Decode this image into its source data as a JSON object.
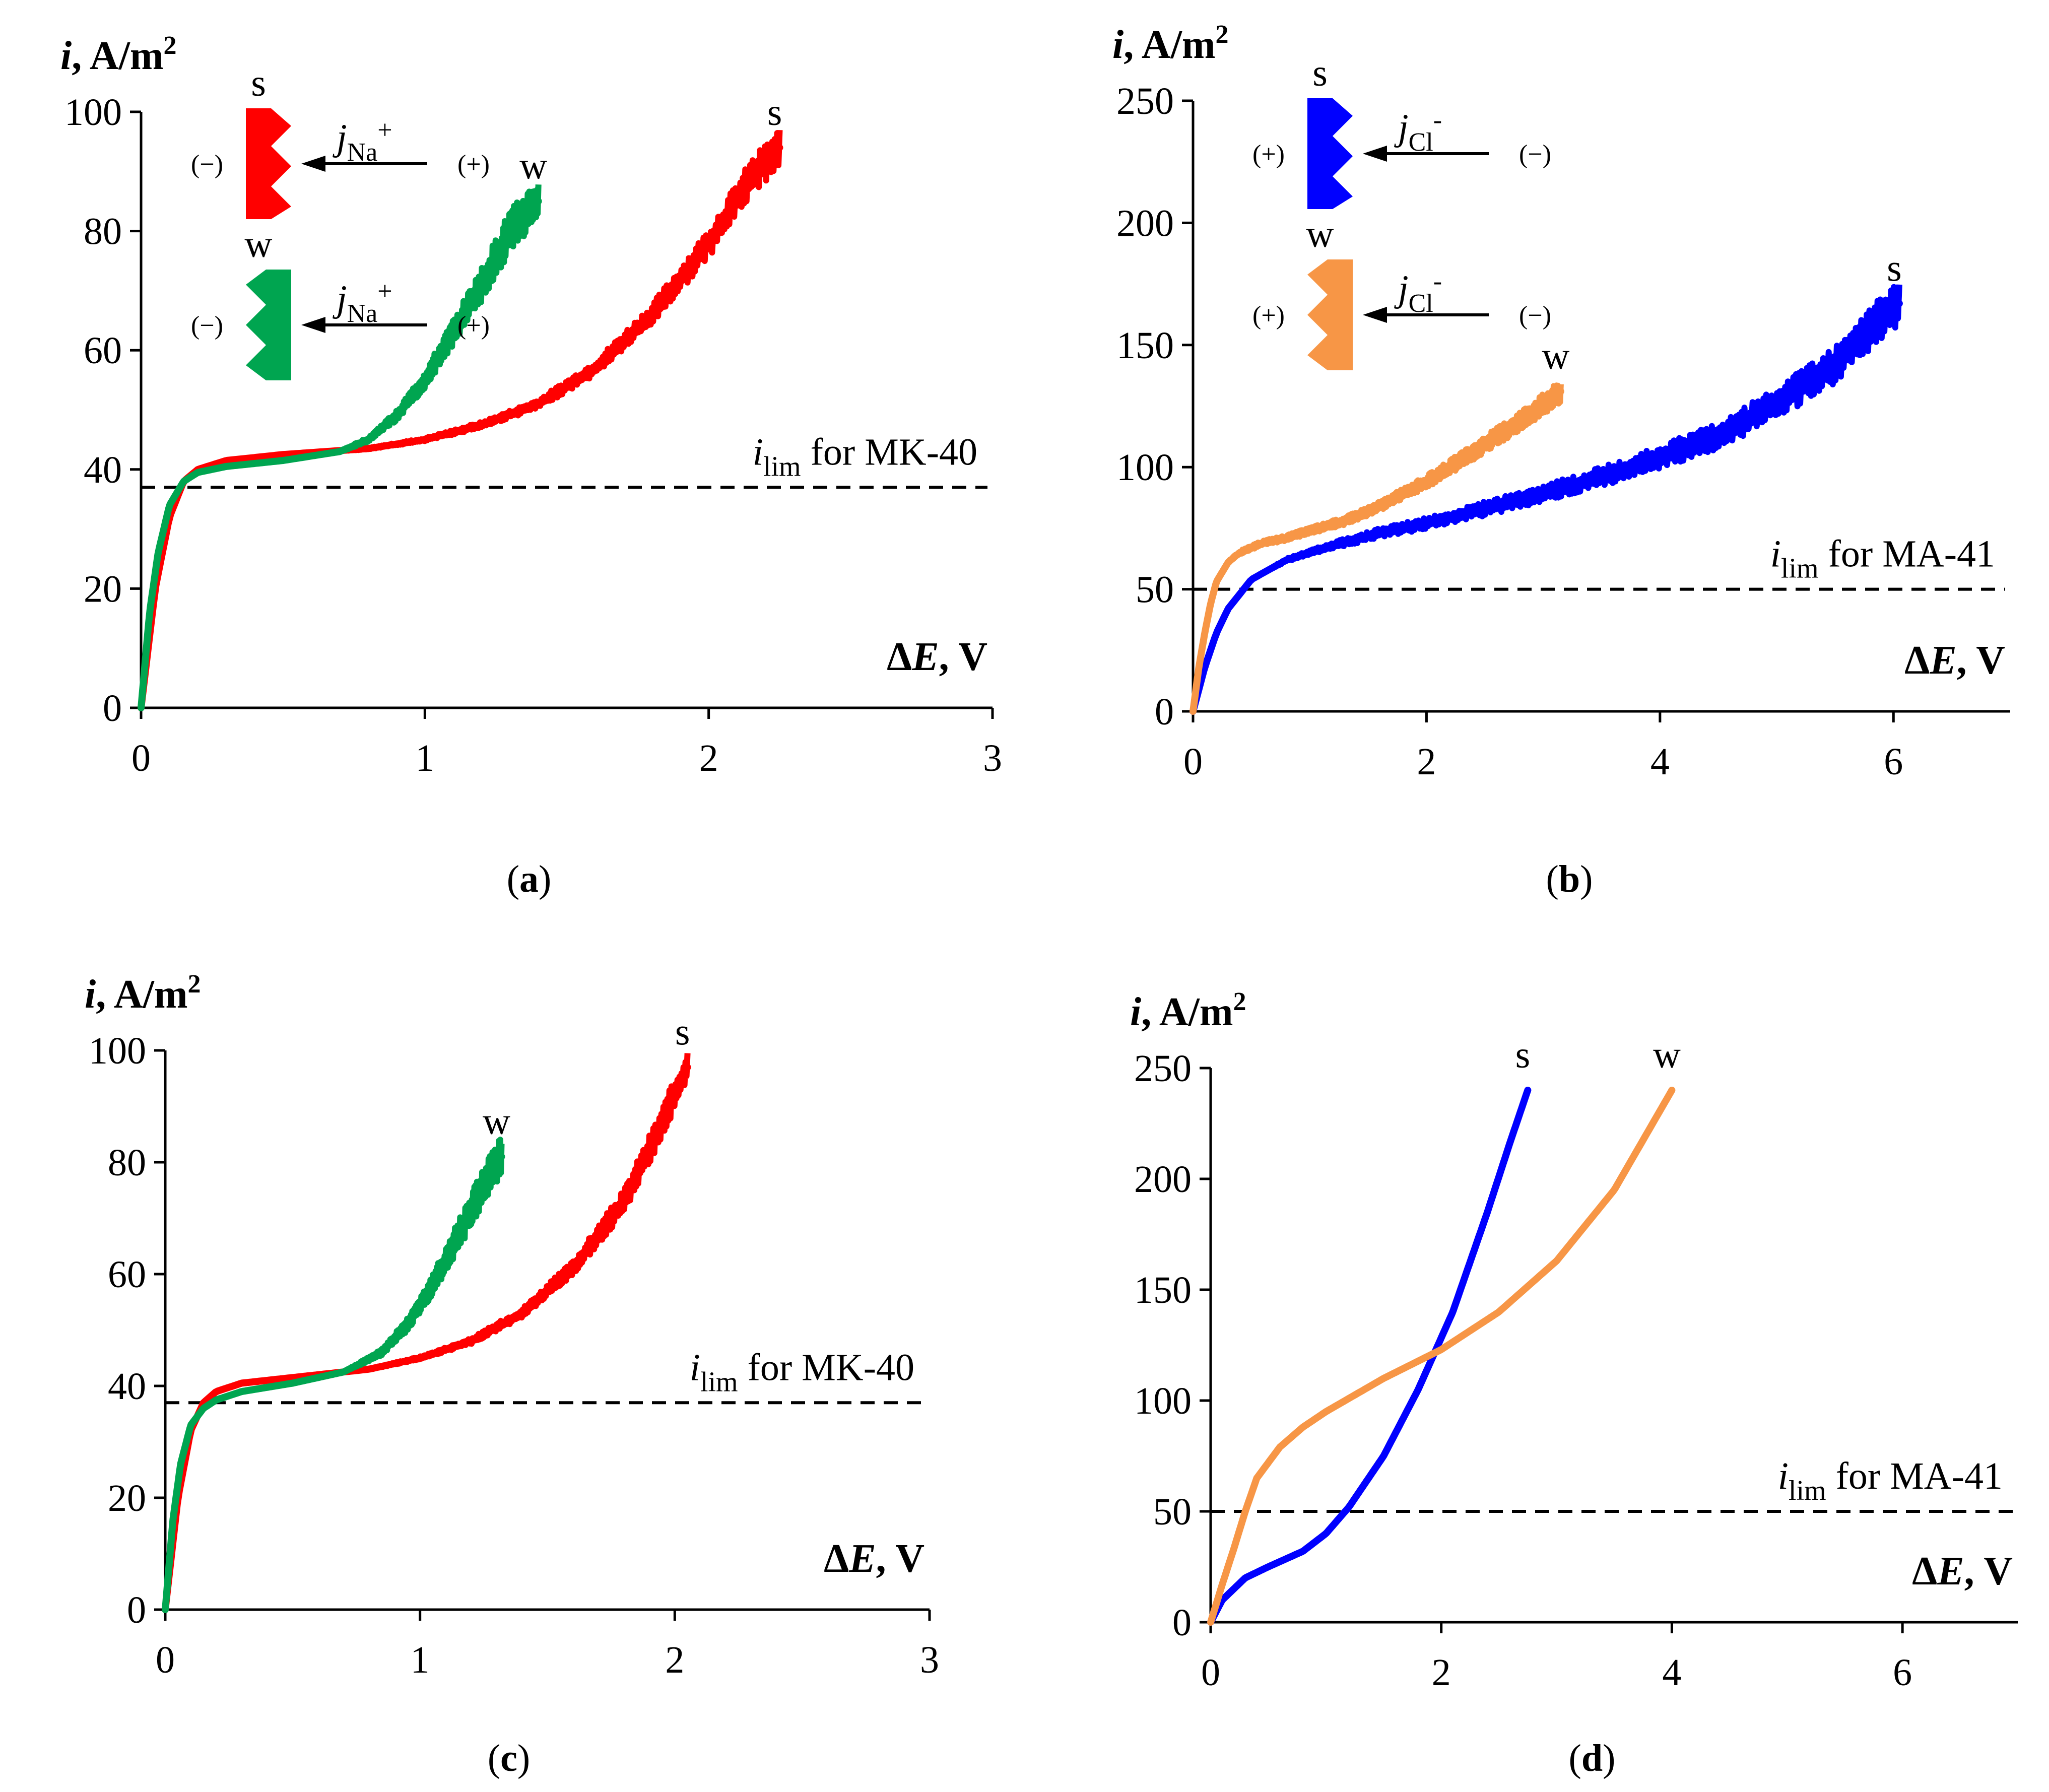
{
  "colors": {
    "red": "#ff0000",
    "green": "#00a550",
    "blue": "#0000ff",
    "orange": "#f79646",
    "axis": "#000000"
  },
  "chart_data": [
    {
      "panel": "a",
      "type": "line",
      "caption_letter": "a",
      "ylabel_i": "i",
      "ylabel_units": ", A/m",
      "ylabel_sup": "2",
      "xlabel_d": "Δ",
      "xlabel_e": "E",
      "xlabel_units": ", V",
      "xlim": [
        0,
        3
      ],
      "ylim": [
        0,
        100
      ],
      "xticks": [
        0,
        1,
        2,
        3
      ],
      "xtick_labels": [
        "0",
        "1",
        "2",
        "3"
      ],
      "yticks": [
        0,
        20,
        40,
        60,
        80,
        100
      ],
      "ytick_labels": [
        "0",
        "20",
        "40",
        "60",
        "80",
        "100"
      ],
      "ilim": 37,
      "ilim_prefix": "i",
      "ilim_sub": "lim",
      "ilim_text": " for MK-40",
      "inset": {
        "ion": "j",
        "ion_sub": "Na",
        "ion_sup": "+",
        "left_sign": "(−)",
        "right_sign": "(+)",
        "top_label": "s",
        "bottom_label": "w",
        "top_color": "red",
        "bottom_color": "green"
      },
      "series": [
        {
          "name": "s",
          "color": "red",
          "noise": 2.2,
          "x": [
            0,
            0.05,
            0.1,
            0.15,
            0.2,
            0.3,
            0.5,
            0.8,
            1.0,
            1.2,
            1.4,
            1.6,
            1.8,
            2.0,
            2.15,
            2.25
          ],
          "y": [
            0,
            20,
            32,
            38,
            40,
            41.5,
            42.5,
            43.5,
            45,
            47.5,
            51,
            57,
            66,
            78,
            89,
            94
          ]
        },
        {
          "name": "w",
          "color": "green",
          "noise": 2.6,
          "x": [
            0,
            0.03,
            0.06,
            0.1,
            0.15,
            0.2,
            0.3,
            0.5,
            0.7,
            0.8,
            0.9,
            1.0,
            1.1,
            1.2,
            1.3,
            1.4
          ],
          "y": [
            0,
            16,
            26,
            34,
            38,
            39.5,
            40.5,
            41.5,
            43,
            45,
            49,
            55,
            63,
            71,
            80,
            85
          ]
        }
      ]
    },
    {
      "panel": "b",
      "type": "line",
      "caption_letter": "b",
      "ylabel_i": "i",
      "ylabel_units": ", A/m",
      "ylabel_sup": "2",
      "xlabel_d": "Δ",
      "xlabel_e": "E",
      "xlabel_units": ", V",
      "xlim": [
        0,
        7
      ],
      "ylim": [
        0,
        250
      ],
      "xticks": [
        0,
        2,
        4,
        6
      ],
      "xtick_labels": [
        "0",
        "2",
        "4",
        "6"
      ],
      "yticks": [
        0,
        50,
        100,
        150,
        200,
        250
      ],
      "ytick_labels": [
        "0",
        "50",
        "100",
        "150",
        "200",
        "250"
      ],
      "ilim": 50,
      "ilim_prefix": "i",
      "ilim_sub": "lim",
      "ilim_text": " for MA-41",
      "inset": {
        "ion": "j",
        "ion_sub": "Cl",
        "ion_sup": "-",
        "left_sign": "(+)",
        "right_sign": "(−)",
        "top_label": "s",
        "bottom_label": "w",
        "top_color": "blue",
        "bottom_color": "orange"
      },
      "series": [
        {
          "name": "s",
          "color": "blue",
          "noise": 2.5,
          "x": [
            0,
            0.1,
            0.2,
            0.3,
            0.5,
            0.8,
            1.2,
            1.6,
            2.0,
            2.5,
            3.0,
            3.5,
            4.0,
            4.5,
            5.0,
            5.5,
            5.8,
            6.05
          ],
          "y": [
            0,
            18,
            32,
            42,
            54,
            62,
            68,
            73,
            77,
            83,
            89,
            96,
            104,
            113,
            126,
            142,
            157,
            167
          ]
        },
        {
          "name": "w",
          "color": "orange",
          "noise": 1.2,
          "x": [
            0,
            0.05,
            0.1,
            0.15,
            0.2,
            0.3,
            0.4,
            0.6,
            0.8,
            1.0,
            1.3,
            1.6,
            2.0,
            2.4,
            2.8,
            3.15
          ],
          "y": [
            0,
            18,
            32,
            44,
            53,
            61,
            65,
            69,
            71,
            74,
            78,
            84,
            94,
            106,
            119,
            131
          ]
        }
      ]
    },
    {
      "panel": "c",
      "type": "line",
      "caption_letter": "c",
      "ylabel_i": "i",
      "ylabel_units": ", A/m",
      "ylabel_sup": "2",
      "xlabel_d": "Δ",
      "xlabel_e": "E",
      "xlabel_units": ", V",
      "xlim": [
        0,
        3
      ],
      "ylim": [
        0,
        100
      ],
      "xticks": [
        0,
        1,
        2,
        3
      ],
      "xtick_labels": [
        "0",
        "1",
        "2",
        "3"
      ],
      "yticks": [
        0,
        20,
        40,
        60,
        80,
        100
      ],
      "ytick_labels": [
        "0",
        "20",
        "40",
        "60",
        "80",
        "100"
      ],
      "ilim": 37,
      "ilim_prefix": "i",
      "ilim_sub": "lim",
      "ilim_text": " for MK-40",
      "series": [
        {
          "name": "s",
          "color": "red",
          "noise": 2.2,
          "x": [
            0,
            0.05,
            0.1,
            0.15,
            0.2,
            0.3,
            0.5,
            0.8,
            1.0,
            1.2,
            1.4,
            1.6,
            1.8,
            1.95,
            2.05
          ],
          "y": [
            0,
            20,
            32,
            37,
            39,
            40.5,
            41.5,
            43,
            45,
            48,
            53,
            61,
            73,
            87,
            97
          ]
        },
        {
          "name": "w",
          "color": "green",
          "noise": 2.6,
          "x": [
            0,
            0.03,
            0.06,
            0.1,
            0.15,
            0.2,
            0.3,
            0.5,
            0.7,
            0.85,
            0.95,
            1.05,
            1.15,
            1.25,
            1.32
          ],
          "y": [
            0,
            16,
            26,
            33,
            36,
            37.5,
            39,
            40.5,
            42.5,
            46,
            51,
            58,
            67,
            76,
            81
          ]
        }
      ]
    },
    {
      "panel": "d",
      "type": "line",
      "caption_letter": "d",
      "ylabel_i": "i",
      "ylabel_units": ", A/m",
      "ylabel_sup": "2",
      "xlabel_d": "Δ",
      "xlabel_e": "E",
      "xlabel_units": ", V",
      "xlim": [
        0,
        7
      ],
      "ylim": [
        0,
        250
      ],
      "xticks": [
        0,
        2,
        4,
        6
      ],
      "xtick_labels": [
        "0",
        "2",
        "4",
        "6"
      ],
      "yticks": [
        0,
        50,
        100,
        150,
        200,
        250
      ],
      "ytick_labels": [
        "0",
        "50",
        "100",
        "150",
        "200",
        "250"
      ],
      "ilim": 50,
      "ilim_prefix": "i",
      "ilim_sub": "lim",
      "ilim_text": " for MA-41",
      "series": [
        {
          "name": "s",
          "color": "blue",
          "noise": 0,
          "x": [
            0,
            0.1,
            0.3,
            0.5,
            0.8,
            1.0,
            1.2,
            1.5,
            1.8,
            2.1,
            2.4,
            2.6,
            2.75
          ],
          "y": [
            0,
            10,
            20,
            25,
            32,
            40,
            52,
            75,
            105,
            140,
            185,
            217,
            240
          ]
        },
        {
          "name": "w",
          "color": "orange",
          "noise": 0,
          "x": [
            0,
            0.1,
            0.2,
            0.3,
            0.4,
            0.6,
            0.8,
            1.0,
            1.5,
            2.0,
            2.5,
            3.0,
            3.5,
            4.0
          ],
          "y": [
            0,
            17,
            33,
            50,
            65,
            79,
            88,
            95,
            110,
            123,
            140,
            163,
            195,
            240
          ]
        }
      ]
    }
  ]
}
